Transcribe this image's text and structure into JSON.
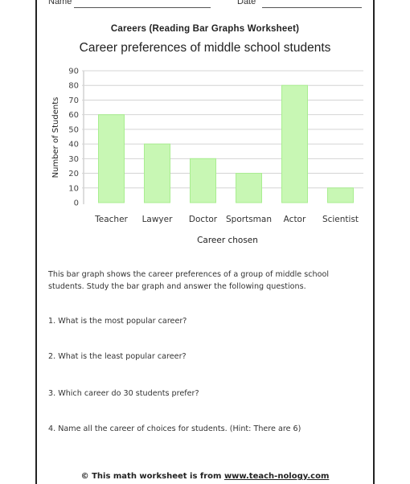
{
  "header": {
    "name_label": "Name",
    "date_label": "Date"
  },
  "worksheet_title": "Careers (Reading Bar Graphs Worksheet)",
  "chart_data": {
    "type": "bar",
    "title": "Career preferences of middle school students",
    "xlabel": "Career chosen",
    "ylabel": "Number of Students",
    "categories": [
      "Teacher",
      "Lawyer",
      "Doctor",
      "Sportsman",
      "Actor",
      "Scientist"
    ],
    "values": [
      60,
      40,
      30,
      20,
      80,
      10
    ],
    "ylim": [
      0,
      90
    ],
    "yticks": [
      0,
      10,
      20,
      30,
      40,
      50,
      60,
      70,
      80,
      90
    ],
    "grid": false,
    "legend": "none",
    "bar_color": "#c8f7b4",
    "bar_edge_color": "#a9ee90"
  },
  "paragraph": "This bar graph shows the career preferences of a group of middle school students. Study the bar graph and answer the following questions.",
  "questions": [
    "1. What is the most popular career?",
    "2. What is the least popular career?",
    "3. Which career do 30 students prefer?",
    "4. Name all the career of choices for students. (Hint: There are 6)"
  ],
  "footer": {
    "prefix": "© This math worksheet is from ",
    "url": "www.teach-nology.com"
  }
}
